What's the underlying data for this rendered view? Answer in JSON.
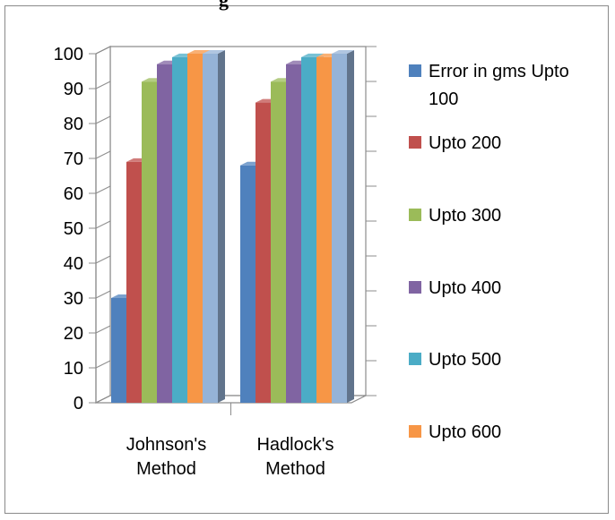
{
  "heading": "g",
  "colors": {
    "axis": "#8c8c8c",
    "wall": "#ffffff"
  },
  "chart_data": {
    "type": "bar",
    "three_d": true,
    "categories": [
      [
        "Johnson's",
        "Method"
      ],
      [
        "Hadlock's",
        "Method"
      ]
    ],
    "series": [
      {
        "name": [
          "Error in gms Upto",
          "100"
        ],
        "color": "#4f81bd",
        "values": [
          30,
          68
        ]
      },
      {
        "name": [
          "Upto  200"
        ],
        "color": "#c0504d",
        "values": [
          69,
          86
        ]
      },
      {
        "name": [
          "Upto  300"
        ],
        "color": "#9bbb59",
        "values": [
          92,
          92
        ]
      },
      {
        "name": [
          "Upto  400"
        ],
        "color": "#8064a2",
        "values": [
          97,
          97
        ]
      },
      {
        "name": [
          "Upto  500"
        ],
        "color": "#4bacc6",
        "values": [
          99,
          99
        ]
      },
      {
        "name": [
          "Upto  600"
        ],
        "color": "#f79646",
        "values": [
          100,
          99
        ]
      },
      {
        "name": [],
        "color": "#95b3d7",
        "values": [
          100,
          100
        ],
        "in_legend": false
      }
    ],
    "ylim": [
      0,
      100
    ],
    "yticks": [
      0,
      10,
      20,
      30,
      40,
      50,
      60,
      70,
      80,
      90,
      100
    ],
    "grid": false,
    "legend_position": "right"
  }
}
